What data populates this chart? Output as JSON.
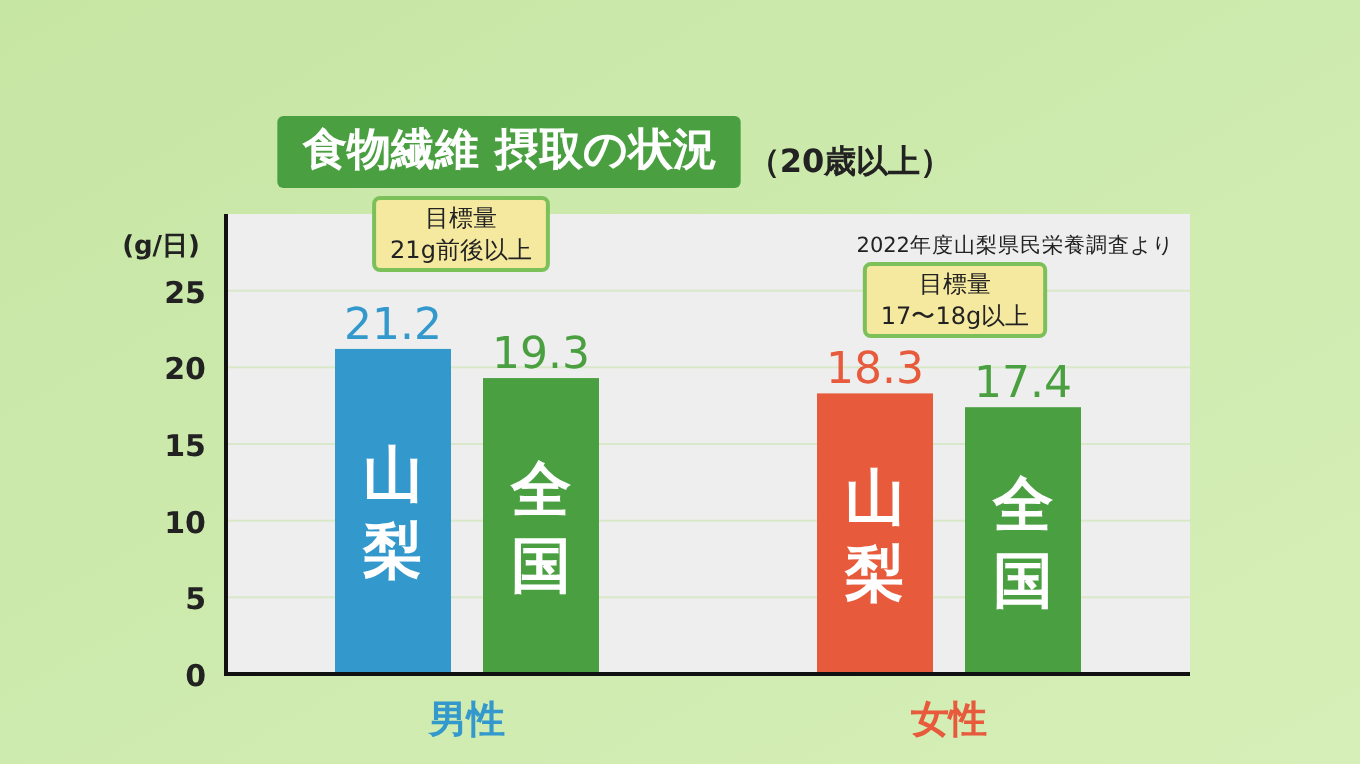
{
  "chart_data": {
    "type": "bar",
    "title": "食物繊維 摂取の状況",
    "subtitle": "（20歳以上）",
    "ylabel": "(g/日)",
    "categories": [
      "男性",
      "女性"
    ],
    "series": [
      {
        "name": "山梨",
        "colors": [
          "#3399cc",
          "#e85a3c"
        ],
        "values": [
          21.2,
          18.3
        ]
      },
      {
        "name": "全国",
        "color": "#4aa040",
        "values": [
          19.3,
          17.4
        ]
      }
    ],
    "ylim": [
      0,
      30
    ],
    "yticks": [
      0,
      5,
      10,
      15,
      20,
      25
    ],
    "grid": "y",
    "data_labels": true,
    "legend": false,
    "annotations": [
      "2022年度山梨県民栄養調査より",
      "目標量\n21g前後以上",
      "目標量\n17〜18g以上"
    ]
  }
}
